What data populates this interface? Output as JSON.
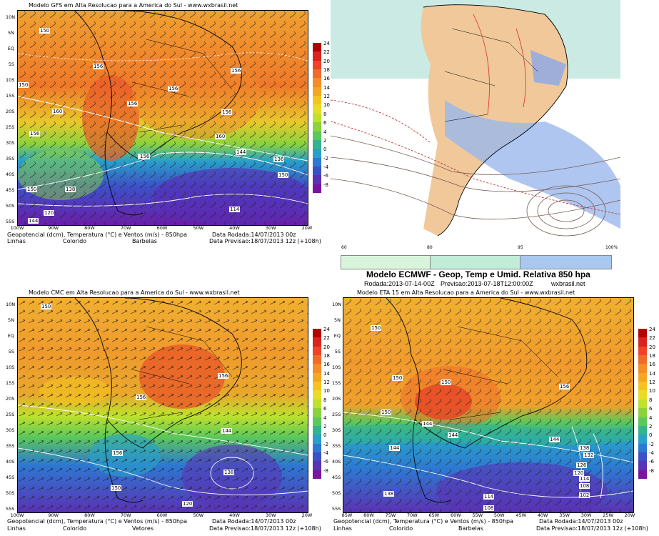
{
  "lat_labels": [
    "10N",
    "5N",
    "EQ",
    "5S",
    "10S",
    "15S",
    "20S",
    "25S",
    "30S",
    "35S",
    "40S",
    "45S",
    "50S",
    "55S"
  ],
  "lon_labels_sa": [
    "100W",
    "90W",
    "80W",
    "70W",
    "60W",
    "50W",
    "40W",
    "30W",
    "20W"
  ],
  "lon_labels_eta": [
    "85W",
    "80W",
    "75W",
    "70W",
    "65W",
    "60W",
    "55W",
    "50W",
    "45W",
    "40W",
    "35W",
    "30W",
    "25W",
    "20W"
  ],
  "colorbar": {
    "labels": [
      "24",
      "22",
      "20",
      "18",
      "16",
      "14",
      "12",
      "10",
      "8",
      "6",
      "4",
      "2",
      "0",
      "-2",
      "-4",
      "-6",
      "-8"
    ],
    "colors": [
      "#b40000",
      "#d8231e",
      "#f04228",
      "#f06a2a",
      "#f58c28",
      "#f5a623",
      "#f5c31f",
      "#e8dc28",
      "#bee12d",
      "#8cd23c",
      "#5ac85a",
      "#32b48c",
      "#28a0c8",
      "#2d78d2",
      "#3c50c8",
      "#5a32b4",
      "#7814a0"
    ]
  },
  "gfs": {
    "title": "Modelo GFS em Alta Resolucao para a America do Sul - www.wxbrasil.net",
    "footer_left": "Geopotencial (dcm), Temperatura (°C) e Ventos (m/s) - 850hpa",
    "footer_sub": [
      "Linhas",
      "Colorido",
      "Barbelas"
    ],
    "rodada": "Data Rodada:14/07/2013 00z",
    "previsao": "Data Previsao:18/07/2013 12z (+108h)",
    "contours": [
      "150",
      "156",
      "156",
      "156",
      "156",
      "156",
      "150",
      "156",
      "160",
      "156",
      "160",
      "144",
      "156",
      "136",
      "150",
      "150",
      "138",
      "120",
      "114",
      "144"
    ]
  },
  "ecmwf": {
    "title": "Modelo ECMWF - Geop, Temp e Umid. Relativa 850 hpa",
    "rodada": "Rodada:2013-07-14-00Z",
    "previsao": "Previsao:2013-07-18T12:00:00Z",
    "site": "wxbrasil.net",
    "legend_colors": [
      "#d8f5dc",
      "#c0ecd8",
      "#a8c8f0"
    ],
    "axis_ticks": [
      "60",
      "80",
      "95",
      "100%"
    ]
  },
  "cmc": {
    "title": "Modelo CMC em Alta Resolucao para a America do Sul - www.wxbrasil.net",
    "footer_left": "Geopotencial (dcm), Temperatura (°C) e Ventos (m/s) - 850hpa",
    "footer_sub": [
      "Linhas",
      "Colorido",
      "Vetores"
    ],
    "rodada": "Data Rodada:14/07/2013 00z",
    "previsao": "Data Previsao:18/07/2013 12z (+108h)",
    "contours": [
      "150",
      "156",
      "156",
      "156",
      "144",
      "138",
      "120",
      "150"
    ]
  },
  "eta": {
    "title": "Modelo ETA 15 em Alta Resolucao para a America do Sul - www.wxbrasil.net",
    "footer_left": "Geopotencial (dcm), Temperatura (°C) e Ventos (m/s) - 850hpa",
    "footer_sub": [
      "Linhas",
      "Colorido",
      "Barbelas"
    ],
    "rodada": "Data Rodada:14/07/2013 00z",
    "previsao": "Data Previsao:18/07/2013 12z (+108h)",
    "contours": [
      "150",
      "150",
      "150",
      "156",
      "150",
      "144",
      "144",
      "144",
      "138",
      "132",
      "126",
      "120",
      "114",
      "108",
      "102",
      "144",
      "138",
      "114",
      "108"
    ]
  }
}
